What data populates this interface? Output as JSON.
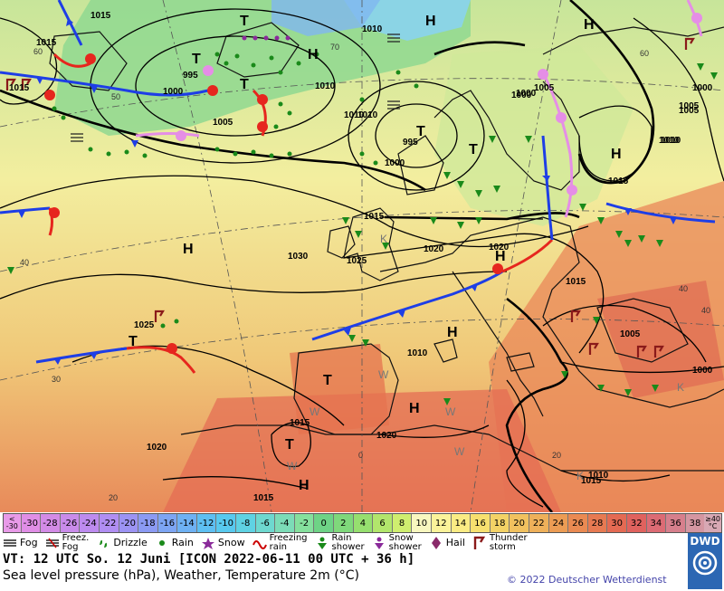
{
  "map": {
    "pressure_labels": [
      "1015",
      "1015",
      "1015",
      "1010",
      "995",
      "1000",
      "1005",
      "1010",
      "1010",
      "1000",
      "995",
      "1000",
      "1005",
      "1010",
      "1015",
      "1015",
      "1020",
      "1025",
      "1030",
      "1025",
      "1020",
      "1015",
      "1010",
      "1005",
      "1000",
      "1015",
      "1020",
      "1020",
      "1015",
      "1015",
      "1010",
      "1000",
      "1005",
      "1010",
      "1000",
      "1005",
      "1010"
    ],
    "highs": [
      "H",
      "H",
      "H",
      "H",
      "H",
      "H",
      "H",
      "H",
      "H"
    ],
    "lows": [
      "T",
      "T",
      "T",
      "T",
      "T",
      "T",
      "T",
      "T"
    ],
    "region_marks": [
      "K",
      "K",
      "K",
      "W",
      "W",
      "W",
      "W",
      "W"
    ],
    "temp_labels": [
      "40",
      "40",
      "40",
      "30",
      "20",
      "20",
      "0",
      "50",
      "60",
      "70",
      "60"
    ]
  },
  "scale": {
    "low_top": "<",
    "low_bottom": "-30",
    "values": [
      "-30",
      "-28",
      "-26",
      "-24",
      "-22",
      "-20",
      "-18",
      "-16",
      "-14",
      "-12",
      "-10",
      "-8",
      "-6",
      "-4",
      "-2",
      "0",
      "2",
      "4",
      "6",
      "8",
      "10",
      "12",
      "14",
      "16",
      "18",
      "20",
      "22",
      "24",
      "26",
      "28",
      "30",
      "32",
      "34",
      "36",
      "38"
    ],
    "colors": [
      "#e08ee6",
      "#d38be6",
      "#c98bea",
      "#bd8bef",
      "#b08ef2",
      "#9c93f3",
      "#8b9af3",
      "#7da5f3",
      "#6eb1f3",
      "#5ebff2",
      "#58c9ee",
      "#5fd2e3",
      "#6ed8cf",
      "#7cdcb7",
      "#85e09d",
      "#6ed386",
      "#7fd87b",
      "#96df6f",
      "#b2e66c",
      "#cfee6f",
      "#f8f7bf",
      "#fbf39a",
      "#faec84",
      "#f7e06f",
      "#f3d266",
      "#f1c15f",
      "#eeb05a",
      "#ec9c54",
      "#ea8a52",
      "#e77a52",
      "#e46a53",
      "#e0625e",
      "#dc6b74",
      "#d67f8c",
      "#d496a1"
    ],
    "high_top": "≥40",
    "high_bottom": "°C"
  },
  "legend": [
    {
      "icon": "fog-icon",
      "label": "Fog"
    },
    {
      "icon": "freezing-fog-icon",
      "label": "Freez.\nFog"
    },
    {
      "icon": "drizzle-icon",
      "label": "Drizzle"
    },
    {
      "icon": "rain-icon",
      "label": "Rain"
    },
    {
      "icon": "snow-icon",
      "label": "Snow"
    },
    {
      "icon": "freezing-rain-icon",
      "label": "Freezing\nrain"
    },
    {
      "icon": "rain-shower-icon",
      "label": "Rain\nshower"
    },
    {
      "icon": "snow-shower-icon",
      "label": "Snow\nshower"
    },
    {
      "icon": "hail-icon",
      "label": "Hail"
    },
    {
      "icon": "thunderstorm-icon",
      "label": "Thunder\nstorm"
    }
  ],
  "footer": {
    "valid_time": "VT: 12 UTC So.  12 Juni [ICON 2022-06-11  00 UTC + 36 h]",
    "description": "Sea level pressure (hPa), Weather, Temperature 2m (°C)",
    "copyright": "© 2022 Deutscher Wetterdienst",
    "logo": "DWD"
  },
  "colors": {
    "front_cold": "#1e3ee6",
    "front_warm": "#e6261e",
    "front_occluded": "#e58ee6",
    "isobar": "#000000"
  }
}
